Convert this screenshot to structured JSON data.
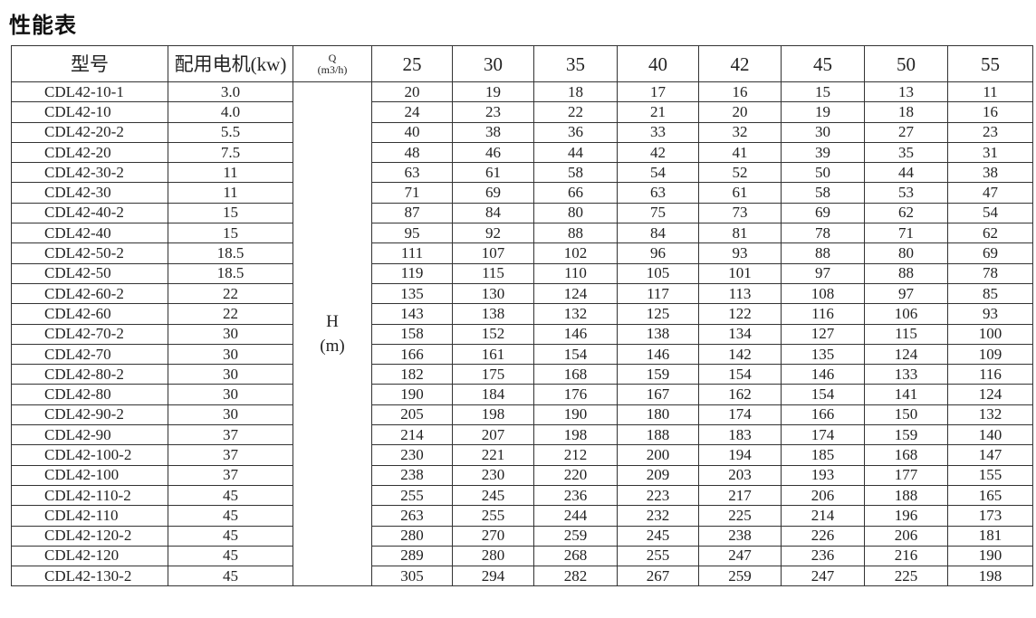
{
  "title": "性能表",
  "header": {
    "model": "型号",
    "motor": "配用电机(kw)",
    "q_label": "Q",
    "q_unit": "(m3/h)",
    "flows": [
      "25",
      "30",
      "35",
      "40",
      "42",
      "45",
      "50",
      "55"
    ]
  },
  "h_label": "H",
  "h_unit": "(m)",
  "rows": [
    {
      "model": "CDL42-10-1",
      "motor": "3.0",
      "heads": [
        "20",
        "19",
        "18",
        "17",
        "16",
        "15",
        "13",
        "11"
      ]
    },
    {
      "model": "CDL42-10",
      "motor": "4.0",
      "heads": [
        "24",
        "23",
        "22",
        "21",
        "20",
        "19",
        "18",
        "16"
      ]
    },
    {
      "model": "CDL42-20-2",
      "motor": "5.5",
      "heads": [
        "40",
        "38",
        "36",
        "33",
        "32",
        "30",
        "27",
        "23"
      ]
    },
    {
      "model": "CDL42-20",
      "motor": "7.5",
      "heads": [
        "48",
        "46",
        "44",
        "42",
        "41",
        "39",
        "35",
        "31"
      ]
    },
    {
      "model": "CDL42-30-2",
      "motor": "11",
      "heads": [
        "63",
        "61",
        "58",
        "54",
        "52",
        "50",
        "44",
        "38"
      ]
    },
    {
      "model": "CDL42-30",
      "motor": "11",
      "heads": [
        "71",
        "69",
        "66",
        "63",
        "61",
        "58",
        "53",
        "47"
      ]
    },
    {
      "model": "CDL42-40-2",
      "motor": "15",
      "heads": [
        "87",
        "84",
        "80",
        "75",
        "73",
        "69",
        "62",
        "54"
      ]
    },
    {
      "model": "CDL42-40",
      "motor": "15",
      "heads": [
        "95",
        "92",
        "88",
        "84",
        "81",
        "78",
        "71",
        "62"
      ]
    },
    {
      "model": "CDL42-50-2",
      "motor": "18.5",
      "heads": [
        "111",
        "107",
        "102",
        "96",
        "93",
        "88",
        "80",
        "69"
      ]
    },
    {
      "model": "CDL42-50",
      "motor": "18.5",
      "heads": [
        "119",
        "115",
        "110",
        "105",
        "101",
        "97",
        "88",
        "78"
      ]
    },
    {
      "model": "CDL42-60-2",
      "motor": "22",
      "heads": [
        "135",
        "130",
        "124",
        "117",
        "113",
        "108",
        "97",
        "85"
      ]
    },
    {
      "model": "CDL42-60",
      "motor": "22",
      "heads": [
        "143",
        "138",
        "132",
        "125",
        "122",
        "116",
        "106",
        "93"
      ]
    },
    {
      "model": "CDL42-70-2",
      "motor": "30",
      "heads": [
        "158",
        "152",
        "146",
        "138",
        "134",
        "127",
        "115",
        "100"
      ]
    },
    {
      "model": "CDL42-70",
      "motor": "30",
      "heads": [
        "166",
        "161",
        "154",
        "146",
        "142",
        "135",
        "124",
        "109"
      ]
    },
    {
      "model": "CDL42-80-2",
      "motor": "30",
      "heads": [
        "182",
        "175",
        "168",
        "159",
        "154",
        "146",
        "133",
        "116"
      ]
    },
    {
      "model": "CDL42-80",
      "motor": "30",
      "heads": [
        "190",
        "184",
        "176",
        "167",
        "162",
        "154",
        "141",
        "124"
      ]
    },
    {
      "model": "CDL42-90-2",
      "motor": "30",
      "heads": [
        "205",
        "198",
        "190",
        "180",
        "174",
        "166",
        "150",
        "132"
      ]
    },
    {
      "model": "CDL42-90",
      "motor": "37",
      "heads": [
        "214",
        "207",
        "198",
        "188",
        "183",
        "174",
        "159",
        "140"
      ]
    },
    {
      "model": "CDL42-100-2",
      "motor": "37",
      "heads": [
        "230",
        "221",
        "212",
        "200",
        "194",
        "185",
        "168",
        "147"
      ]
    },
    {
      "model": "CDL42-100",
      "motor": "37",
      "heads": [
        "238",
        "230",
        "220",
        "209",
        "203",
        "193",
        "177",
        "155"
      ]
    },
    {
      "model": "CDL42-110-2",
      "motor": "45",
      "heads": [
        "255",
        "245",
        "236",
        "223",
        "217",
        "206",
        "188",
        "165"
      ]
    },
    {
      "model": "CDL42-110",
      "motor": "45",
      "heads": [
        "263",
        "255",
        "244",
        "232",
        "225",
        "214",
        "196",
        "173"
      ]
    },
    {
      "model": "CDL42-120-2",
      "motor": "45",
      "heads": [
        "280",
        "270",
        "259",
        "245",
        "238",
        "226",
        "206",
        "181"
      ]
    },
    {
      "model": "CDL42-120",
      "motor": "45",
      "heads": [
        "289",
        "280",
        "268",
        "255",
        "247",
        "236",
        "216",
        "190"
      ]
    },
    {
      "model": "CDL42-130-2",
      "motor": "45",
      "heads": [
        "305",
        "294",
        "282",
        "267",
        "259",
        "247",
        "225",
        "198"
      ]
    }
  ]
}
